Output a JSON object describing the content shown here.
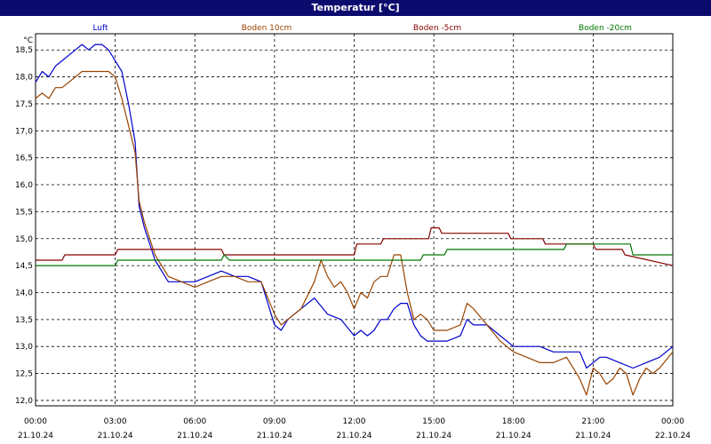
{
  "chart_data": {
    "type": "line",
    "title": "Temperatur [°C]",
    "ylabel": "°C",
    "xlabel": "",
    "ylim": [
      11.9,
      18.8
    ],
    "xlim": [
      0,
      24
    ],
    "grid": true,
    "legend_position": "top",
    "x_ticks": [
      0,
      3,
      6,
      9,
      12,
      15,
      18,
      21,
      24
    ],
    "x_tick_labels": [
      [
        "00:00",
        "21.10.24"
      ],
      [
        "03:00",
        "21.10.24"
      ],
      [
        "06:00",
        "21.10.24"
      ],
      [
        "09:00",
        "21.10.24"
      ],
      [
        "12:00",
        "21.10.24"
      ],
      [
        "15:00",
        "21.10.24"
      ],
      [
        "18:00",
        "21.10.24"
      ],
      [
        "21:00",
        "21.10.24"
      ],
      [
        "00:00",
        "22.10.24"
      ]
    ],
    "y_ticks": [
      "12,0",
      "12,5",
      "13,0",
      "13,5",
      "14,0",
      "14,5",
      "15,0",
      "15,5",
      "16,0",
      "16,5",
      "17,0",
      "17,5",
      "18,0",
      "18,5"
    ],
    "y_tick_values": [
      12.0,
      12.5,
      13.0,
      13.5,
      14.0,
      14.5,
      15.0,
      15.5,
      16.0,
      16.5,
      17.0,
      17.5,
      18.0,
      18.5
    ],
    "series": [
      {
        "name": "Luft",
        "color": "#0000cc",
        "x": [
          0,
          0.25,
          0.5,
          0.75,
          1,
          1.25,
          1.5,
          1.75,
          2,
          2.25,
          2.5,
          2.75,
          3,
          3.25,
          3.5,
          3.75,
          3.9,
          4.1,
          4.3,
          4.5,
          4.75,
          5,
          5.5,
          6,
          6.5,
          7,
          7.5,
          8,
          8.5,
          9,
          9.25,
          9.5,
          10,
          10.5,
          11,
          11.5,
          12,
          12.25,
          12.5,
          12.75,
          13,
          13.25,
          13.5,
          13.75,
          14,
          14.25,
          14.5,
          14.75,
          15,
          15.5,
          16,
          16.25,
          16.5,
          17,
          17.5,
          18,
          18.5,
          19,
          19.5,
          20,
          20.5,
          20.75,
          21,
          21.25,
          21.5,
          22,
          22.5,
          23,
          23.5,
          24
        ],
        "y": [
          17.9,
          18.1,
          18.0,
          18.2,
          18.3,
          18.4,
          18.5,
          18.6,
          18.5,
          18.6,
          18.6,
          18.5,
          18.3,
          18.1,
          17.5,
          16.8,
          15.6,
          15.2,
          14.9,
          14.6,
          14.4,
          14.2,
          14.2,
          14.2,
          14.3,
          14.4,
          14.3,
          14.3,
          14.2,
          13.4,
          13.3,
          13.5,
          13.7,
          13.9,
          13.6,
          13.5,
          13.2,
          13.3,
          13.2,
          13.3,
          13.5,
          13.5,
          13.7,
          13.8,
          13.8,
          13.4,
          13.2,
          13.1,
          13.1,
          13.1,
          13.2,
          13.5,
          13.4,
          13.4,
          13.2,
          13.0,
          13.0,
          13.0,
          12.9,
          12.9,
          12.9,
          12.6,
          12.7,
          12.8,
          12.8,
          12.7,
          12.6,
          12.7,
          12.8,
          13.0
        ]
      },
      {
        "name": "Boden 10cm",
        "color": "#994400",
        "x": [
          0,
          0.25,
          0.5,
          0.75,
          1,
          1.25,
          1.5,
          1.75,
          2,
          2.25,
          2.5,
          2.75,
          3,
          3.25,
          3.5,
          3.75,
          3.9,
          4.1,
          4.3,
          4.5,
          4.75,
          5,
          5.5,
          6,
          6.5,
          7,
          7.5,
          8,
          8.5,
          9,
          9.25,
          9.5,
          10,
          10.5,
          10.75,
          11,
          11.25,
          11.5,
          11.75,
          12,
          12.25,
          12.5,
          12.75,
          13,
          13.25,
          13.5,
          13.75,
          14,
          14.25,
          14.5,
          14.75,
          15,
          15.5,
          16,
          16.25,
          16.5,
          17,
          17.5,
          18,
          18.5,
          19,
          19.5,
          20,
          20.5,
          20.75,
          21,
          21.25,
          21.5,
          21.75,
          22,
          22.25,
          22.5,
          22.75,
          23,
          23.25,
          23.5,
          24
        ],
        "y": [
          17.6,
          17.7,
          17.6,
          17.8,
          17.8,
          17.9,
          18.0,
          18.1,
          18.1,
          18.1,
          18.1,
          18.1,
          18.0,
          17.6,
          17.1,
          16.6,
          15.7,
          15.3,
          15.0,
          14.7,
          14.5,
          14.3,
          14.2,
          14.1,
          14.2,
          14.3,
          14.3,
          14.2,
          14.2,
          13.6,
          13.4,
          13.5,
          13.7,
          14.2,
          14.6,
          14.3,
          14.1,
          14.2,
          14.0,
          13.7,
          14.0,
          13.9,
          14.2,
          14.3,
          14.3,
          14.7,
          14.7,
          14.0,
          13.5,
          13.6,
          13.5,
          13.3,
          13.3,
          13.4,
          13.8,
          13.7,
          13.4,
          13.1,
          12.9,
          12.8,
          12.7,
          12.7,
          12.8,
          12.4,
          12.1,
          12.6,
          12.5,
          12.3,
          12.4,
          12.6,
          12.5,
          12.1,
          12.4,
          12.6,
          12.5,
          12.6,
          12.9
        ]
      },
      {
        "name": "Boden -5cm",
        "color": "#880000",
        "x": [
          0,
          1,
          1.1,
          3,
          3.1,
          7,
          7.1,
          12,
          12.1,
          13,
          13.1,
          14.8,
          14.9,
          15.2,
          15.3,
          17.8,
          17.9,
          19.1,
          19.2,
          21,
          21.1,
          22.1,
          22.2,
          24
        ],
        "y": [
          14.6,
          14.6,
          14.7,
          14.7,
          14.8,
          14.8,
          14.7,
          14.7,
          14.9,
          14.9,
          15.0,
          15.0,
          15.2,
          15.2,
          15.1,
          15.1,
          15.0,
          15.0,
          14.9,
          14.9,
          14.8,
          14.8,
          14.7,
          14.5
        ]
      },
      {
        "name": "Boden -20cm",
        "color": "#007700",
        "x": [
          0,
          3,
          3.1,
          7,
          7.1,
          7.3,
          7.4,
          14.5,
          14.6,
          15.4,
          15.5,
          19.9,
          20,
          22.4,
          22.5,
          24
        ],
        "y": [
          14.5,
          14.5,
          14.6,
          14.6,
          14.7,
          14.6,
          14.6,
          14.6,
          14.7,
          14.7,
          14.8,
          14.8,
          14.9,
          14.9,
          14.7,
          14.7
        ]
      }
    ]
  }
}
